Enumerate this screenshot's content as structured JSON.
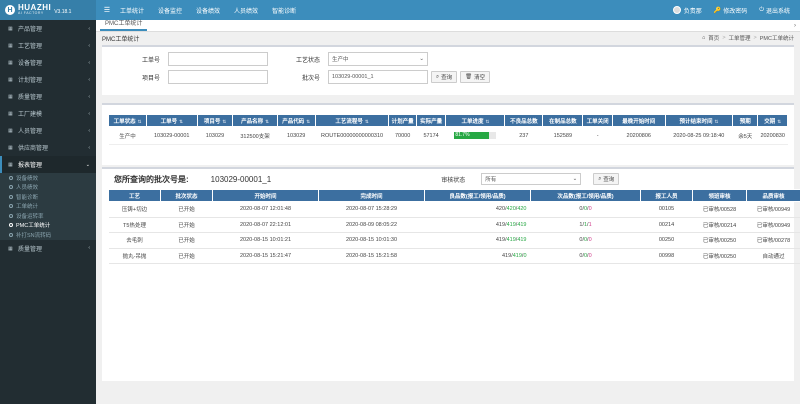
{
  "header": {
    "logo_mark": "H",
    "logo_title": "HUAZHI",
    "logo_sub": "AI FACTORY",
    "version": "V3.18.1",
    "nav": [
      "工单统计",
      "设备监控",
      "设备绩效",
      "人员绩效",
      "智能诊断"
    ],
    "user": "负责那",
    "change_password": "修改密码",
    "logout": "退出系统"
  },
  "sidebar": {
    "items": [
      {
        "label": "产品管理"
      },
      {
        "label": "工艺管理"
      },
      {
        "label": "设备管理"
      },
      {
        "label": "计划管理"
      },
      {
        "label": "质量管理"
      },
      {
        "label": "工厂建模"
      },
      {
        "label": "人员管理"
      },
      {
        "label": "供应商管理"
      },
      {
        "label": "报表管理"
      }
    ],
    "sub_items": [
      "设备绩效",
      "人员绩效",
      "智能诊断",
      "工单统计",
      "设备运转率",
      "PMC工单统计",
      "补打SN流转码"
    ],
    "after": "质量管理"
  },
  "tabs": {
    "active": "PMC工单统计"
  },
  "page": {
    "title": "PMC工单统计",
    "breadcrumb": [
      "首页",
      "工单管理",
      "PMC工单统计"
    ]
  },
  "search": {
    "order_no_label": "工单号",
    "order_no_value": "",
    "process_label": "工艺状态",
    "process_value": "生产中",
    "project_label": "项目号",
    "project_value": "",
    "batch_label": "批次号",
    "batch_value": "103029-00001_1",
    "search_btn": "查询",
    "clear_btn": "清空"
  },
  "orders": {
    "headers": [
      "工单状态",
      "工单号",
      "项目号",
      "产品名称",
      "产品代码",
      "工艺流程号",
      "计划产量",
      "实际产量",
      "工单进度",
      "不良品总数",
      "在制品总数",
      "工单关闭",
      "最晚开始时间",
      "预计结束时间",
      "预期",
      "交期"
    ],
    "rows": [
      {
        "status": "生产中",
        "order_no": "103029-00001",
        "project": "103029",
        "product_name": "312500支架",
        "product_code": "103029",
        "route": "ROUTE00000000000310",
        "planned": "70000",
        "actual": "57174",
        "progress_text": "81.7%",
        "progress": 0.817,
        "defects": "237",
        "wip": "152589",
        "closed": "-",
        "latest_start": "20200806",
        "expected_end": "2020-08-25 09:18:40",
        "expected": "余5天",
        "delivery": "20200830"
      }
    ]
  },
  "batch": {
    "label": "您所查询的批次号是:",
    "value": "103029-00001_1",
    "audit_label": "审核状态",
    "audit_value": "所有",
    "search_btn": "查询",
    "headers": [
      "工艺",
      "批次状态",
      "开始时间",
      "完成时间",
      "良品数(报工/领用/品质)",
      "次品数(报工/领用/品质)",
      "报工人员",
      "领班审核",
      "品质审核"
    ],
    "rows": [
      {
        "process": "压铸+切边",
        "status": "已开始",
        "start": "2020-08-07 12:01:48",
        "end": "2020-08-07 15:28:29",
        "good_a": "420",
        "good_b": "420",
        "good_c": "420",
        "bad_a": "0",
        "bad_b": "0",
        "bad_c": "0",
        "worker": "00105",
        "leader": "已审核/00528",
        "quality": "已审核/00949"
      },
      {
        "process": "T5热处理",
        "status": "已开始",
        "start": "2020-08-07 22:12:01",
        "end": "2020-08-09 08:05:22",
        "good_a": "419",
        "good_b": "419",
        "good_c": "419",
        "bad_a": "1",
        "bad_b": "1",
        "bad_c": "1",
        "worker": "00214",
        "leader": "已审核/00214",
        "quality": "已审核/00949"
      },
      {
        "process": "去毛刺",
        "status": "已开始",
        "start": "2020-08-15 10:01:21",
        "end": "2020-08-15 10:01:30",
        "good_a": "419",
        "good_b": "419",
        "good_c": "419",
        "bad_a": "0",
        "bad_b": "0",
        "bad_c": "0",
        "worker": "00250",
        "leader": "已审核/00250",
        "quality": "已审核/00278"
      },
      {
        "process": "抛丸-吊抛",
        "status": "已开始",
        "start": "2020-08-15 15:21:47",
        "end": "2020-08-15 15:21:58",
        "good_a": "419",
        "good_b": "419",
        "good_c": "0",
        "bad_a": "0",
        "bad_b": "0",
        "bad_c": "0",
        "worker": "00998",
        "leader": "已审核/00250",
        "quality": "自动通过"
      }
    ]
  },
  "colors": {
    "accent": "#3c8dbc",
    "header_table": "#3c6fa0",
    "sidebar": "#222d32",
    "good": "#27a844"
  }
}
